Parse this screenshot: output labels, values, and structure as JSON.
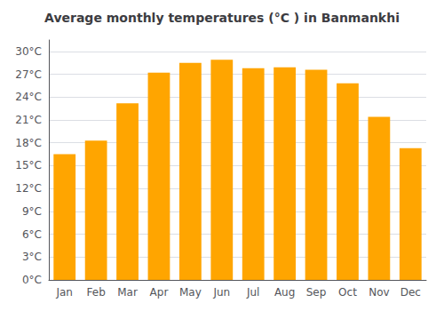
{
  "chart_data": {
    "type": "bar",
    "title": "Average monthly temperatures (°C ) in Banmankhi",
    "categories": [
      "Jan",
      "Feb",
      "Mar",
      "Apr",
      "May",
      "Jun",
      "Jul",
      "Aug",
      "Sep",
      "Oct",
      "Nov",
      "Dec"
    ],
    "values": [
      16.5,
      18.3,
      23.2,
      27.2,
      28.5,
      28.9,
      27.8,
      27.9,
      27.6,
      25.8,
      21.4,
      17.3
    ],
    "color": "#FFA500",
    "ylim": [
      0,
      31.5
    ],
    "yticks": [
      {
        "value": 0,
        "label": "0°C"
      },
      {
        "value": 3,
        "label": "3°C"
      },
      {
        "value": 6,
        "label": "6°C"
      },
      {
        "value": 9,
        "label": "9°C"
      },
      {
        "value": 12,
        "label": "12°C"
      },
      {
        "value": 15,
        "label": "15°C"
      },
      {
        "value": 18,
        "label": "18°C"
      },
      {
        "value": 21,
        "label": "21°C"
      },
      {
        "value": 24,
        "label": "24°C"
      },
      {
        "value": 27,
        "label": "27°C"
      },
      {
        "value": 30,
        "label": "30°C"
      }
    ],
    "grid": true
  }
}
